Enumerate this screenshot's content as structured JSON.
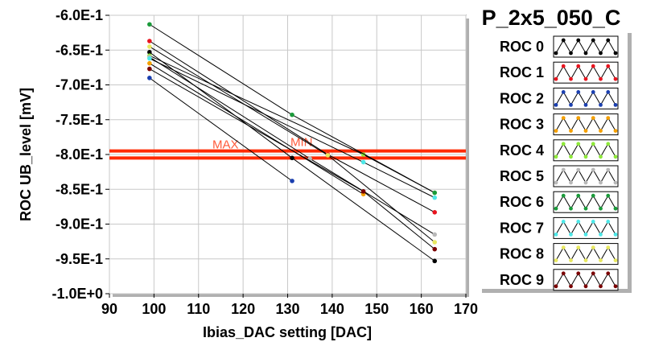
{
  "chart_data": {
    "type": "line",
    "title": "P_2x5_050_C",
    "xlabel": "Ibias_DAC setting [DAC]",
    "ylabel": "ROC UB_level [mV]",
    "xlim": [
      90,
      170
    ],
    "ylim": [
      -1.0,
      -0.6
    ],
    "x_ticks": [
      90,
      100,
      110,
      120,
      130,
      140,
      150,
      160,
      170
    ],
    "x_tick_labels": [
      "90",
      "100",
      "110",
      "120",
      "130",
      "140",
      "150",
      "160",
      "170"
    ],
    "y_ticks": [
      -0.6,
      -0.65,
      -0.7,
      -0.75,
      -0.8,
      -0.85,
      -0.9,
      -0.95,
      -1.0
    ],
    "y_tick_labels": [
      "-6.0E-1",
      "-6.5E-1",
      "-7.0E-1",
      "-7.5E-1",
      "-8.0E-1",
      "-8.5E-1",
      "-9.0E-1",
      "-9.5E-1",
      "-1.0E+0"
    ],
    "grid": true,
    "legend_position": "right",
    "reference_lines": [
      {
        "label": "MAX",
        "y": -0.795,
        "color": "#ff2a00"
      },
      {
        "label": "MIN",
        "y": -0.805,
        "color": "#ff2a00"
      }
    ],
    "series": [
      {
        "name": "ROC 0",
        "color": "#000000",
        "x": [
          99,
          131,
          163
        ],
        "y": [
          -0.653,
          -0.805,
          -0.953
        ]
      },
      {
        "name": "ROC 1",
        "color": "#e8141e",
        "x": [
          99,
          139,
          163
        ],
        "y": [
          -0.637,
          -0.8,
          -0.883
        ]
      },
      {
        "name": "ROC 2",
        "color": "#1a3fb0",
        "x": [
          99,
          131
        ],
        "y": [
          -0.69,
          -0.838
        ]
      },
      {
        "name": "ROC 3",
        "color": "#f5a000",
        "x": [
          99,
          147
        ],
        "y": [
          -0.669,
          -0.857
        ]
      },
      {
        "name": "ROC 4",
        "color": "#8ee83a",
        "x": [
          99,
          147,
          163
        ],
        "y": [
          -0.658,
          -0.8,
          -0.855
        ]
      },
      {
        "name": "ROC 5",
        "color": "#b8b8b8",
        "x": [
          99,
          135,
          163
        ],
        "y": [
          -0.66,
          -0.806,
          -0.915
        ]
      },
      {
        "name": "ROC 6",
        "color": "#1a9a3a",
        "x": [
          99,
          131,
          163
        ],
        "y": [
          -0.613,
          -0.743,
          -0.855
        ]
      },
      {
        "name": "ROC 7",
        "color": "#4de8e8",
        "x": [
          99,
          147,
          163
        ],
        "y": [
          -0.662,
          -0.811,
          -0.862
        ]
      },
      {
        "name": "ROC 8",
        "color": "#e8e860",
        "x": [
          99,
          139,
          163
        ],
        "y": [
          -0.645,
          -0.801,
          -0.926
        ]
      },
      {
        "name": "ROC 9",
        "color": "#7a0000",
        "x": [
          99,
          147,
          163
        ],
        "y": [
          -0.677,
          -0.853,
          -0.936
        ]
      }
    ]
  }
}
